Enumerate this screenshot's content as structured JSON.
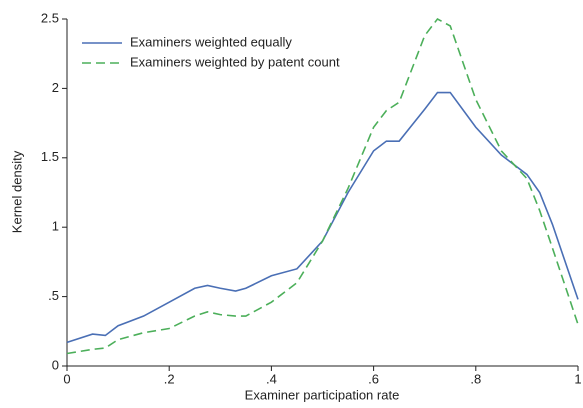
{
  "chart_data": {
    "type": "line",
    "x_label": "Examiner participation rate",
    "y_label": "Kernel density",
    "x": [
      0,
      0.05,
      0.075,
      0.1,
      0.15,
      0.2,
      0.25,
      0.275,
      0.3,
      0.33,
      0.35,
      0.4,
      0.45,
      0.5,
      0.55,
      0.6,
      0.625,
      0.65,
      0.7,
      0.725,
      0.75,
      0.8,
      0.85,
      0.9,
      0.925,
      0.95,
      1
    ],
    "series": [
      {
        "name": "Examiners weighted equally",
        "color": "#4a6fb5",
        "linestyle": "solid",
        "values": [
          0.17,
          0.23,
          0.22,
          0.29,
          0.36,
          0.46,
          0.56,
          0.58,
          0.56,
          0.54,
          0.56,
          0.65,
          0.7,
          0.9,
          1.25,
          1.55,
          1.62,
          1.62,
          1.85,
          1.97,
          1.97,
          1.72,
          1.52,
          1.38,
          1.25,
          1.02,
          0.48
        ]
      },
      {
        "name": "Examiners weighted by patent count",
        "color": "#4caf5a",
        "linestyle": "dashed",
        "values": [
          0.09,
          0.12,
          0.13,
          0.19,
          0.24,
          0.27,
          0.36,
          0.39,
          0.37,
          0.36,
          0.36,
          0.46,
          0.6,
          0.9,
          1.28,
          1.72,
          1.84,
          1.9,
          2.38,
          2.5,
          2.45,
          1.92,
          1.55,
          1.35,
          1.12,
          0.85,
          0.3
        ]
      }
    ],
    "xlim": [
      0,
      1
    ],
    "ylim": [
      0,
      2.5
    ],
    "xticks": [
      0,
      {
        "value": 0.2,
        "label": ".2"
      },
      {
        "value": 0.4,
        "label": ".4"
      },
      {
        "value": 0.6,
        "label": ".6"
      },
      {
        "value": 0.8,
        "label": ".8"
      },
      1
    ],
    "yticks": [
      0,
      {
        "value": 0.5,
        "label": ".5"
      },
      1,
      1.5,
      2,
      2.5
    ],
    "grid": false,
    "legend": "upper-left"
  }
}
